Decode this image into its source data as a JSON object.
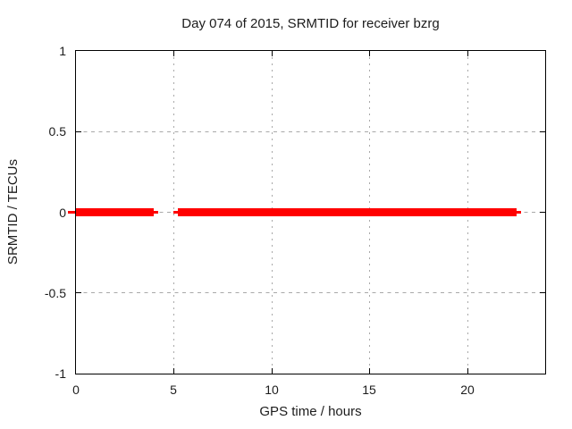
{
  "window": {
    "background": "#ffffff",
    "text_color": "#1c1c1c"
  },
  "chart_data": {
    "type": "line",
    "title": "Day 074 of 2015, SRMTID for receiver bzrg",
    "xlabel": "GPS time / hours",
    "ylabel": "SRMTID / TECUs",
    "xlim": [
      0,
      24
    ],
    "ylim": [
      -1,
      1
    ],
    "xticks": [
      0,
      5,
      10,
      15,
      20
    ],
    "yticks": [
      -1,
      -0.5,
      0,
      0.5,
      1
    ],
    "grid": true,
    "legend": "none",
    "axis_color": "#000000",
    "grid_color": "#a9a9a9",
    "series": [
      {
        "name": "SRMTID",
        "color": "#ff0000",
        "style": "thick horizontal band",
        "y_value": 0,
        "segments_x_hours": [
          [
            0.0,
            3.97
          ],
          [
            5.22,
            22.55
          ]
        ],
        "sparse_points_x_hours": [
          4.11,
          5.1,
          22.63
        ]
      }
    ]
  }
}
